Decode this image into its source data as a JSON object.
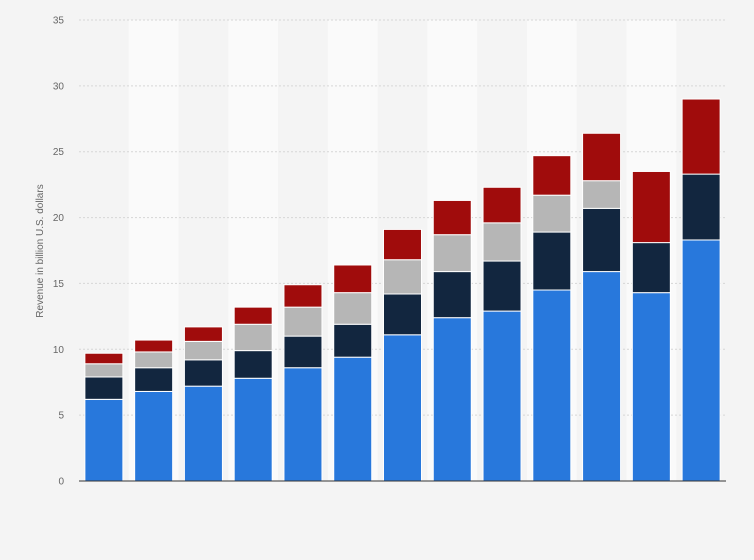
{
  "chart_data": {
    "type": "bar",
    "stacked": true,
    "title": "",
    "xlabel": "",
    "ylabel": "Revenue in billion U.S. dollars",
    "ylim": [
      0,
      35
    ],
    "yticks": [
      0,
      5,
      10,
      15,
      20,
      25,
      30,
      35
    ],
    "grid": true,
    "legend": "none",
    "category_count": 13,
    "series": [
      {
        "color": "#2878dc",
        "values": [
          6.2,
          6.8,
          7.2,
          7.8,
          8.6,
          9.4,
          11.1,
          12.4,
          12.9,
          14.5,
          15.9,
          14.3,
          18.3
        ]
      },
      {
        "color": "#12263f",
        "values": [
          1.7,
          1.8,
          2.0,
          2.1,
          2.4,
          2.5,
          3.1,
          3.5,
          3.8,
          4.4,
          4.8,
          3.8,
          5.0
        ]
      },
      {
        "color": "#b6b6b6",
        "values": [
          1.0,
          1.2,
          1.4,
          2.0,
          2.2,
          2.4,
          2.6,
          2.8,
          2.9,
          2.8,
          2.1,
          0.0,
          0.0
        ]
      },
      {
        "color": "#a00c0c",
        "values": [
          0.8,
          0.9,
          1.1,
          1.3,
          1.7,
          2.1,
          2.3,
          2.6,
          2.7,
          3.0,
          3.6,
          5.4,
          5.7
        ]
      }
    ]
  }
}
